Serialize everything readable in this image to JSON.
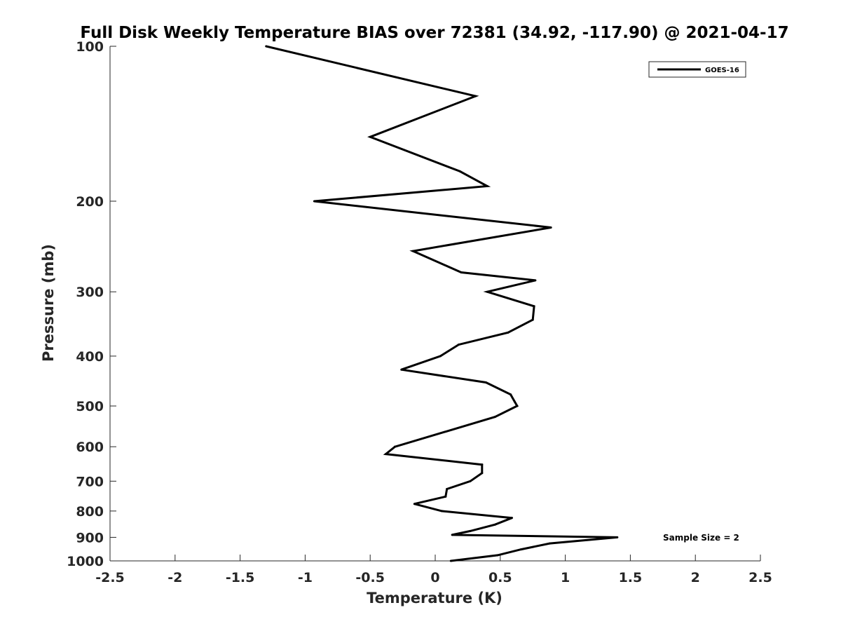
{
  "chart_data": {
    "type": "line",
    "title": "Full Disk Weekly Temperature BIAS over 72381 (34.92, -117.90) @ 2021-04-17",
    "xlabel": "Temperature (K)",
    "ylabel": "Pressure (mb)",
    "xlim": [
      -2.5,
      2.5
    ],
    "ylim": [
      100,
      1000
    ],
    "y_scale": "log",
    "y_reversed": true,
    "grid": false,
    "legend_position": "top-right",
    "x_ticks": [
      "-2.5",
      "-2",
      "-1.5",
      "-1",
      "-0.5",
      "0",
      "0.5",
      "1",
      "1.5",
      "2",
      "2.5"
    ],
    "x_tick_values": [
      -2.5,
      -2,
      -1.5,
      -1,
      -0.5,
      0,
      0.5,
      1,
      1.5,
      2,
      2.5
    ],
    "y_ticks": [
      "100",
      "200",
      "300",
      "400",
      "500",
      "600",
      "700",
      "800",
      "900",
      "1000"
    ],
    "y_tick_values": [
      100,
      200,
      300,
      400,
      500,
      600,
      700,
      800,
      900,
      1000
    ],
    "annotation": "Sample Size = 2",
    "series": [
      {
        "name": "GOES-16",
        "color": "#000000",
        "points": [
          {
            "x": -1.3,
            "p": 100
          },
          {
            "x": 0.31,
            "p": 125
          },
          {
            "x": -0.5,
            "p": 150
          },
          {
            "x": 0.19,
            "p": 175
          },
          {
            "x": 0.4,
            "p": 187
          },
          {
            "x": -0.93,
            "p": 200
          },
          {
            "x": 0.89,
            "p": 225
          },
          {
            "x": -0.17,
            "p": 250
          },
          {
            "x": 0.2,
            "p": 275
          },
          {
            "x": 0.77,
            "p": 285
          },
          {
            "x": 0.4,
            "p": 300
          },
          {
            "x": 0.76,
            "p": 320
          },
          {
            "x": 0.75,
            "p": 340
          },
          {
            "x": 0.56,
            "p": 360
          },
          {
            "x": 0.18,
            "p": 380
          },
          {
            "x": 0.04,
            "p": 400
          },
          {
            "x": -0.26,
            "p": 425
          },
          {
            "x": 0.39,
            "p": 450
          },
          {
            "x": 0.58,
            "p": 475
          },
          {
            "x": 0.61,
            "p": 490
          },
          {
            "x": 0.63,
            "p": 500
          },
          {
            "x": 0.46,
            "p": 525
          },
          {
            "x": -0.31,
            "p": 600
          },
          {
            "x": -0.38,
            "p": 620
          },
          {
            "x": 0.36,
            "p": 650
          },
          {
            "x": 0.36,
            "p": 675
          },
          {
            "x": 0.27,
            "p": 700
          },
          {
            "x": 0.09,
            "p": 725
          },
          {
            "x": 0.08,
            "p": 750
          },
          {
            "x": -0.16,
            "p": 775
          },
          {
            "x": 0.05,
            "p": 800
          },
          {
            "x": 0.59,
            "p": 825
          },
          {
            "x": 0.46,
            "p": 850
          },
          {
            "x": 0.27,
            "p": 875
          },
          {
            "x": 0.13,
            "p": 890
          },
          {
            "x": 1.4,
            "p": 900
          },
          {
            "x": 0.88,
            "p": 925
          },
          {
            "x": 0.66,
            "p": 950
          },
          {
            "x": 0.48,
            "p": 975
          },
          {
            "x": 0.12,
            "p": 1000
          }
        ]
      }
    ]
  }
}
